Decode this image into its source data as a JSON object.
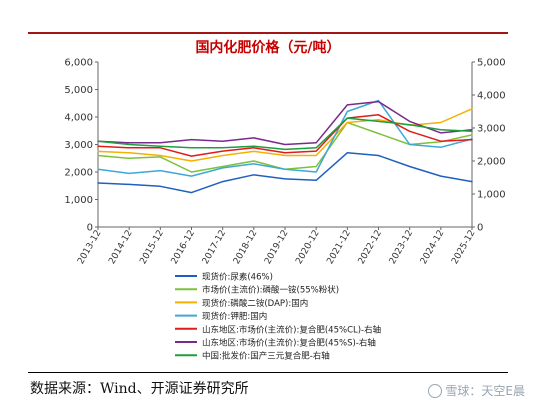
{
  "chart_data": {
    "type": "line",
    "title": "国内化肥价格（元/吨）",
    "x": [
      "2013-12",
      "2014-12",
      "2015-12",
      "2016-12",
      "2017-12",
      "2018-12",
      "2019-12",
      "2020-12",
      "2021-12",
      "2022-12",
      "2023-12",
      "2024-12",
      "2025-12"
    ],
    "y_left": {
      "range": [
        0,
        6000
      ],
      "ticks": [
        "0",
        "1,000",
        "2,000",
        "3,000",
        "4,000",
        "5,000",
        "6,000"
      ]
    },
    "y_right": {
      "range": [
        0,
        5000
      ],
      "ticks": [
        "0",
        "1,000",
        "2,000",
        "3,000",
        "4,000",
        "5,000"
      ]
    },
    "grid": false,
    "legend_position": "bottom",
    "series": [
      {
        "name": "现货价:尿素(46%)",
        "color": "#1f5fbf",
        "axis": "left",
        "values": [
          1600,
          1550,
          1480,
          1250,
          1650,
          1900,
          1750,
          1700,
          2700,
          2600,
          2200,
          1850,
          1650
        ]
      },
      {
        "name": "市场价(主流价):磷酸一铵(55%粉状)",
        "color": "#7cc23a",
        "axis": "left",
        "values": [
          2600,
          2500,
          2550,
          2000,
          2200,
          2400,
          2100,
          2200,
          3800,
          3400,
          3000,
          3100,
          3350
        ]
      },
      {
        "name": "现货价:磷酸二铵(DAP):国内",
        "color": "#f5b100",
        "axis": "left",
        "values": [
          2750,
          2700,
          2600,
          2400,
          2600,
          2750,
          2600,
          2600,
          3800,
          3900,
          3700,
          3800,
          4300
        ]
      },
      {
        "name": "现货价:钾肥:国内",
        "color": "#3fa7d6",
        "axis": "left",
        "values": [
          2100,
          1950,
          2050,
          1850,
          2150,
          2300,
          2100,
          2000,
          4200,
          4600,
          3000,
          2900,
          3200
        ]
      },
      {
        "name": "山东地区:市场价(主流价):复合肥(45%CL)-右轴",
        "color": "#e01b1b",
        "axis": "right",
        "values": [
          2450,
          2400,
          2400,
          2150,
          2300,
          2400,
          2250,
          2300,
          3300,
          3400,
          2900,
          2600,
          2650
        ]
      },
      {
        "name": "山东地区:市场价(主流价):复合肥(45%S)-右轴",
        "color": "#7a2a8c",
        "axis": "right",
        "values": [
          2600,
          2550,
          2550,
          2650,
          2600,
          2700,
          2500,
          2550,
          3700,
          3800,
          3200,
          2850,
          2950
        ]
      },
      {
        "name": "中国:批发价:国产三元复合肥-右轴",
        "color": "#1e9e3e",
        "axis": "right",
        "values": [
          2600,
          2500,
          2450,
          2400,
          2400,
          2450,
          2350,
          2400,
          3300,
          3200,
          3100,
          2950,
          2900
        ]
      }
    ]
  },
  "footer": {
    "source": "数据来源：Wind、开源证券研究所",
    "watermark": "雪球：天空E晨"
  }
}
